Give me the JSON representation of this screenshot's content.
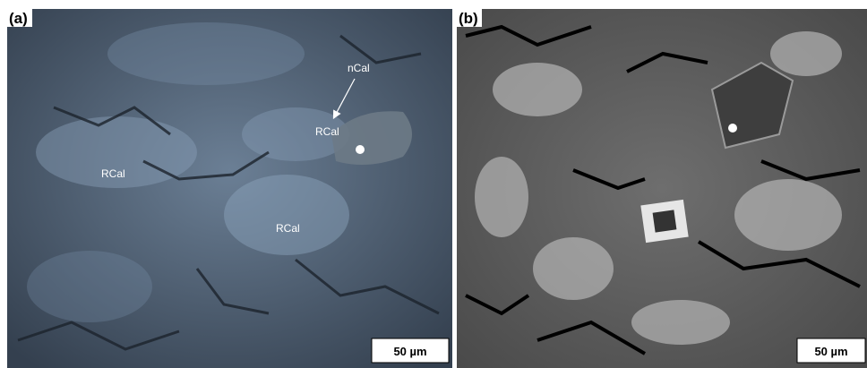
{
  "panels": [
    {
      "label": "(a)",
      "annotations": [
        "nCal",
        "RCal",
        "RCal",
        "RCal"
      ],
      "scale_bar": "50 µm"
    },
    {
      "label": "(b)",
      "scale_bar": "50 µm"
    }
  ]
}
